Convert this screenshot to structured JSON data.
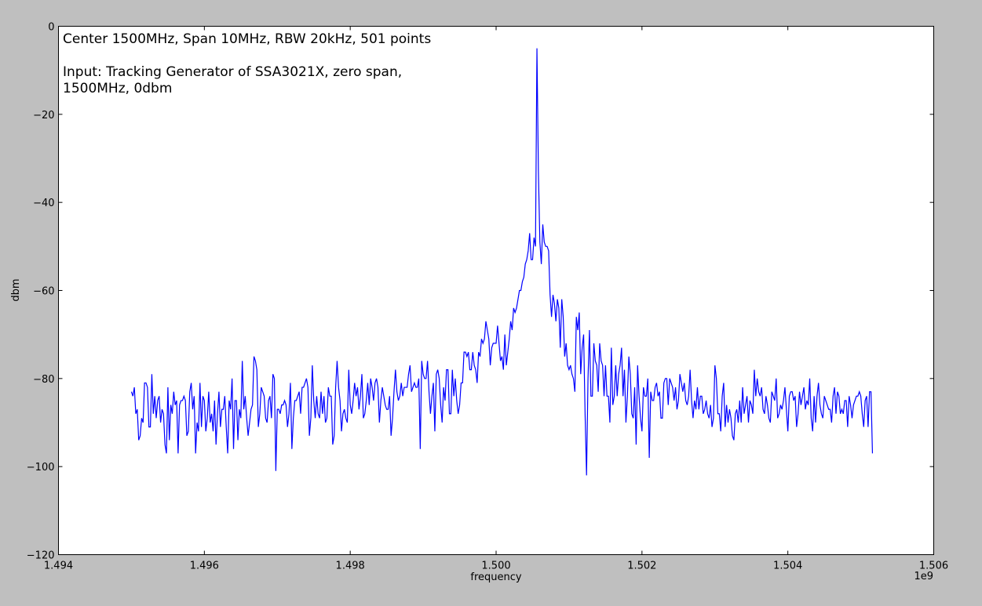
{
  "chart_data": {
    "type": "line",
    "xlabel": "frequency",
    "ylabel": "dbm",
    "xlim": [
      1.494,
      1.506
    ],
    "ylim": [
      -120,
      0
    ],
    "x_offset_text": "1e9",
    "x_ticks": [
      1.494,
      1.496,
      1.498,
      1.5,
      1.502,
      1.504,
      1.506
    ],
    "x_tick_labels": [
      "1.494",
      "1.496",
      "1.498",
      "1.500",
      "1.502",
      "1.504",
      "1.506"
    ],
    "y_ticks": [
      0,
      -20,
      -40,
      -60,
      -80,
      -100,
      -120
    ],
    "y_tick_labels": [
      "0",
      "−20",
      "−40",
      "−60",
      "−80",
      "−100",
      "−120"
    ],
    "annotation_lines": [
      "Center 1500MHz, Span 10MHz, RBW 20kHz, 501 points",
      "",
      "Input: Tracking Generator of SSA3021X, zero span,",
      "1500MHz, 0dbm"
    ],
    "grid": false,
    "series": [
      {
        "color": "#0000ff",
        "x_start": 1.495,
        "x_step": 2e-05,
        "y": [
          -83,
          -84,
          -82,
          -88,
          -87,
          -94,
          -93,
          -89,
          -90,
          -81,
          -81,
          -82,
          -91,
          -91,
          -79,
          -88,
          -84,
          -89,
          -85,
          -84,
          -90,
          -87,
          -88,
          -95,
          -97,
          -82,
          -94,
          -86,
          -88,
          -83,
          -86,
          -85,
          -97,
          -86,
          -85,
          -85,
          -84,
          -85,
          -93,
          -92,
          -83,
          -81,
          -87,
          -84,
          -97,
          -90,
          -92,
          -81,
          -91,
          -84,
          -85,
          -92,
          -89,
          -83,
          -90,
          -88,
          -92,
          -85,
          -95,
          -88,
          -83,
          -91,
          -87,
          -87,
          -84,
          -91,
          -97,
          -85,
          -87,
          -80,
          -96,
          -85,
          -85,
          -94,
          -87,
          -89,
          -76,
          -87,
          -84,
          -89,
          -93,
          -90,
          -87,
          -86,
          -75,
          -76,
          -78,
          -91,
          -88,
          -82,
          -83,
          -84,
          -89,
          -90,
          -85,
          -84,
          -89,
          -79,
          -80,
          -101,
          -87,
          -87,
          -88,
          -86,
          -86,
          -85,
          -86,
          -91,
          -88,
          -81,
          -96,
          -89,
          -85,
          -85,
          -84,
          -83,
          -88,
          -82,
          -82,
          -81,
          -80,
          -82,
          -93,
          -89,
          -77,
          -85,
          -89,
          -84,
          -88,
          -89,
          -83,
          -88,
          -84,
          -90,
          -89,
          -82,
          -84,
          -84,
          -95,
          -93,
          -82,
          -76,
          -82,
          -85,
          -92,
          -88,
          -87,
          -89,
          -90,
          -78,
          -86,
          -88,
          -85,
          -81,
          -84,
          -82,
          -87,
          -84,
          -79,
          -89,
          -88,
          -85,
          -81,
          -86,
          -80,
          -82,
          -85,
          -81,
          -80,
          -82,
          -90,
          -85,
          -82,
          -84,
          -86,
          -87,
          -87,
          -84,
          -93,
          -89,
          -83,
          -78,
          -83,
          -85,
          -84,
          -81,
          -84,
          -82,
          -82,
          -82,
          -79,
          -77,
          -83,
          -82,
          -81,
          -82,
          -82,
          -80,
          -96,
          -76,
          -79,
          -80,
          -80,
          -76,
          -83,
          -88,
          -84,
          -81,
          -92,
          -79,
          -78,
          -80,
          -86,
          -90,
          -82,
          -85,
          -78,
          -78,
          -88,
          -88,
          -78,
          -84,
          -80,
          -85,
          -88,
          -86,
          -81,
          -81,
          -74,
          -74,
          -75,
          -74,
          -78,
          -78,
          -74,
          -77,
          -78,
          -81,
          -74,
          -75,
          -71,
          -72,
          -71,
          -67,
          -69,
          -71,
          -77,
          -73,
          -72,
          -72,
          -72,
          -68,
          -72,
          -76,
          -75,
          -78,
          -70,
          -77,
          -74,
          -71,
          -67,
          -69,
          -64,
          -65,
          -64,
          -62,
          -60,
          -60,
          -58,
          -57,
          -54,
          -53,
          -51,
          -47,
          -53,
          -53,
          -48,
          -50,
          -5,
          -33,
          -49,
          -54,
          -45,
          -49,
          -50,
          -50,
          -51,
          -61,
          -66,
          -61,
          -63,
          -67,
          -62,
          -64,
          -73,
          -62,
          -66,
          -75,
          -72,
          -77,
          -78,
          -77,
          -79,
          -80,
          -83,
          -66,
          -69,
          -65,
          -79,
          -73,
          -70,
          -88,
          -102,
          -80,
          -69,
          -84,
          -84,
          -72,
          -76,
          -77,
          -83,
          -72,
          -76,
          -77,
          -84,
          -77,
          -84,
          -84,
          -90,
          -73,
          -86,
          -84,
          -77,
          -84,
          -79,
          -77,
          -73,
          -84,
          -78,
          -90,
          -84,
          -75,
          -79,
          -88,
          -89,
          -82,
          -95,
          -77,
          -84,
          -89,
          -92,
          -82,
          -84,
          -84,
          -80,
          -98,
          -83,
          -85,
          -85,
          -82,
          -81,
          -84,
          -83,
          -89,
          -89,
          -81,
          -80,
          -80,
          -86,
          -80,
          -81,
          -82,
          -85,
          -82,
          -87,
          -85,
          -79,
          -81,
          -83,
          -81,
          -85,
          -86,
          -84,
          -78,
          -85,
          -89,
          -85,
          -87,
          -82,
          -87,
          -84,
          -84,
          -88,
          -87,
          -85,
          -88,
          -89,
          -86,
          -91,
          -89,
          -77,
          -80,
          -88,
          -88,
          -92,
          -84,
          -81,
          -91,
          -86,
          -90,
          -87,
          -89,
          -93,
          -94,
          -88,
          -87,
          -90,
          -85,
          -90,
          -82,
          -88,
          -86,
          -84,
          -90,
          -85,
          -86,
          -88,
          -78,
          -84,
          -80,
          -83,
          -84,
          -82,
          -87,
          -88,
          -84,
          -86,
          -89,
          -90,
          -83,
          -84,
          -85,
          -80,
          -89,
          -88,
          -86,
          -87,
          -85,
          -82,
          -87,
          -92,
          -84,
          -83,
          -83,
          -85,
          -84,
          -91,
          -88,
          -83,
          -86,
          -84,
          -82,
          -87,
          -85,
          -86,
          -80,
          -89,
          -92,
          -84,
          -90,
          -84,
          -81,
          -86,
          -88,
          -89,
          -84,
          -85,
          -86,
          -87,
          -87,
          -90,
          -84,
          -82,
          -88,
          -83,
          -84,
          -88,
          -87,
          -88,
          -85,
          -85,
          -91,
          -84,
          -86,
          -89,
          -86,
          -85,
          -84,
          -84,
          -83,
          -84,
          -88,
          -91,
          -85,
          -84,
          -91,
          -83,
          -83,
          -97
        ]
      }
    ]
  }
}
